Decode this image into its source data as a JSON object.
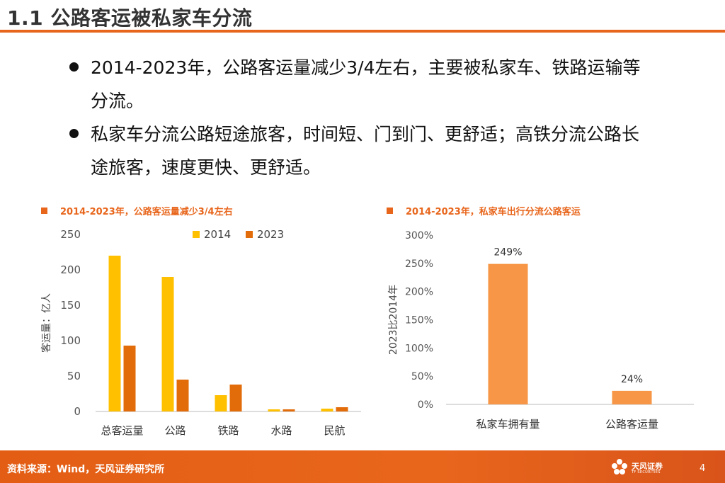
{
  "header": {
    "title": "1.1 公路客运被私家车分流"
  },
  "bullets": [
    {
      "line1": "2014-2023年，公路客运量减少3/4左右，主要被私家车、铁路运输等",
      "line2": "分流。"
    },
    {
      "line1": "私家车分流公路短途旅客，时间短、门到门、更舒适；高铁分流公路长",
      "line2": "途旅客，速度更快、更舒适。"
    }
  ],
  "colors": {
    "accent": "#e8661c",
    "series2014": "#ffc000",
    "series2023": "#e36c0a",
    "bar_right": "#f79646"
  },
  "chart_data": [
    {
      "type": "bar",
      "title": "2014-2023年，公路客运量减少3/4左右",
      "ylabel": "客运量：亿人",
      "xlabel": "",
      "categories": [
        "总客运量",
        "公路",
        "铁路",
        "水路",
        "民航"
      ],
      "series": [
        {
          "name": "2014",
          "values": [
            220,
            190,
            23,
            3,
            4
          ]
        },
        {
          "name": "2023",
          "values": [
            93,
            45,
            38,
            3,
            6
          ]
        }
      ],
      "ylim": [
        0,
        250
      ],
      "yticks": [
        "0",
        "50",
        "100",
        "150",
        "200",
        "250"
      ],
      "legend": "top",
      "grid": false
    },
    {
      "type": "bar",
      "title": "2014-2023年，私家车出行分流公路客运",
      "ylabel": "2023比2014年",
      "xlabel": "",
      "categories": [
        "私家车拥有量",
        "公路客运量"
      ],
      "values": [
        249,
        24
      ],
      "data_labels": [
        "249%",
        "24%"
      ],
      "ylim": [
        0,
        300
      ],
      "yticks": [
        "0%",
        "50%",
        "100%",
        "150%",
        "200%",
        "250%",
        "300%"
      ],
      "grid": false
    }
  ],
  "footer": {
    "source": "资料来源：Wind，天风证券研究所",
    "brand": "天风证券",
    "brand_en": "TF SECURITIES",
    "page": "4"
  }
}
